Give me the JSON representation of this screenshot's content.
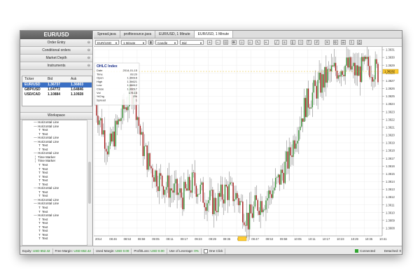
{
  "sidebar": {
    "pair_title": "EUR/USD",
    "sections": [
      "Order Entry",
      "Conditional orders",
      "Market Depth",
      "Instruments"
    ],
    "instruments": {
      "headers": [
        "Ticker",
        "Bid",
        "Ask"
      ],
      "rows": [
        {
          "ticker": "EUR/USD",
          "bid": "1.36737",
          "ask": "1.36803",
          "selected": true
        },
        {
          "ticker": "GBP/USD",
          "bid": "1.64772",
          "ask": "1.64846",
          "selected": false
        },
        {
          "ticker": "USD/CAD",
          "bid": "1.10884",
          "ask": "1.10928",
          "selected": false
        }
      ]
    },
    "workspace_title": "Workspace",
    "workspace_items": [
      {
        "icon": "horizontal-line-icon",
        "label": "Horizontal Line"
      },
      {
        "icon": "horizontal-line-icon",
        "label": "Horizontal Line"
      },
      {
        "icon": "text-icon",
        "label": "Text"
      },
      {
        "icon": "text-icon",
        "label": "Text"
      },
      {
        "icon": "horizontal-line-icon",
        "label": "Horizontal Line"
      },
      {
        "icon": "horizontal-line-icon",
        "label": "Horizontal Line"
      },
      {
        "icon": "text-icon",
        "label": "Text"
      },
      {
        "icon": "text-icon",
        "label": "Text"
      },
      {
        "icon": "horizontal-line-icon",
        "label": "Horizontal Line"
      },
      {
        "icon": "time-marker-icon",
        "label": "Time Marker"
      },
      {
        "icon": "time-marker-icon",
        "label": "Time Marker"
      },
      {
        "icon": "text-icon",
        "label": "Text"
      },
      {
        "icon": "text-icon",
        "label": "Text"
      },
      {
        "icon": "text-icon",
        "label": "Text"
      },
      {
        "icon": "text-icon",
        "label": "Text"
      },
      {
        "icon": "text-icon",
        "label": "Text"
      },
      {
        "icon": "text-icon",
        "label": "Text"
      },
      {
        "icon": "horizontal-line-icon",
        "label": "Horizontal Line"
      },
      {
        "icon": "text-icon",
        "label": "Text"
      },
      {
        "icon": "text-icon",
        "label": "Text"
      },
      {
        "icon": "horizontal-line-icon",
        "label": "Horizontal Line"
      },
      {
        "icon": "horizontal-line-icon",
        "label": "Horizontal Line"
      },
      {
        "icon": "text-icon",
        "label": "Text"
      },
      {
        "icon": "text-icon",
        "label": "Text"
      },
      {
        "icon": "horizontal-line-icon",
        "label": "Horizontal Line"
      },
      {
        "icon": "text-icon",
        "label": "Text"
      },
      {
        "icon": "text-icon",
        "label": "Text"
      },
      {
        "icon": "text-icon",
        "label": "Text"
      },
      {
        "icon": "text-icon",
        "label": "Text"
      },
      {
        "icon": "text-icon",
        "label": "Text"
      },
      {
        "icon": "text-icon",
        "label": "Text"
      }
    ]
  },
  "tabs": [
    {
      "label": "Spread.java",
      "active": false
    },
    {
      "label": "profitexource.java",
      "active": false
    },
    {
      "label": "EUR/USD, 1 Minute",
      "active": false
    },
    {
      "label": "EUR/USD, 1 Minute",
      "active": true
    }
  ],
  "toolbar": {
    "instrument": "EUR/USD",
    "period": "1 Minute",
    "chart_type": "Candle",
    "side": "Bid"
  },
  "ohlc": {
    "title": "OHLC Index",
    "rows": [
      {
        "k": "Date",
        "v": "2014-01-15"
      },
      {
        "k": "Time",
        "v": "09:20"
      },
      {
        "k": "Open",
        "v": "1.36616"
      },
      {
        "k": "High",
        "v": "1.36621"
      },
      {
        "k": "Low",
        "v": "1.36612"
      },
      {
        "k": "Close",
        "v": "1.36617"
      },
      {
        "k": "Vol",
        "v": "178.15"
      },
      {
        "k": "%Chg",
        "v": "0%"
      },
      {
        "k": "Spread",
        "v": "1"
      }
    ]
  },
  "chart_data": {
    "type": "candlestick",
    "price_ticks": [
      "1.3631",
      "1.3630",
      "1.3629",
      "1.3628",
      "1.3627",
      "1.3626",
      "1.3625",
      "1.3624",
      "1.3623",
      "1.3622",
      "1.3621",
      "1.3620",
      "1.3619",
      "1.3618",
      "1.3617",
      "1.3616",
      "1.3615",
      "1.3614",
      "1.3613",
      "1.3612",
      "1.3611",
      "1.3610",
      "1.3609",
      "1.3608"
    ],
    "time_ticks": [
      "2014",
      "08:46",
      "08:53",
      "08:59",
      "09:05",
      "09:11",
      "09:17",
      "09:23",
      "09:29",
      "09:35",
      "09:41",
      "09:47",
      "09:53",
      "09:59",
      "10:05",
      "10:11",
      "10:17",
      "10:23",
      "10:29",
      "10:35",
      "10:41"
    ],
    "current_price": "1.36282",
    "up_color": "#2e8b2e",
    "down_color": "#a01212",
    "segments": [
      [
        0,
        1.3624
      ],
      [
        10,
        1.3618
      ],
      [
        20,
        1.3623
      ],
      [
        28,
        1.3626
      ],
      [
        34,
        1.3619
      ],
      [
        40,
        1.3616
      ],
      [
        48,
        1.3614
      ],
      [
        56,
        1.3613
      ],
      [
        64,
        1.3612
      ],
      [
        72,
        1.3614
      ],
      [
        80,
        1.3612
      ],
      [
        88,
        1.3611
      ],
      [
        96,
        1.3613
      ],
      [
        104,
        1.3612
      ],
      [
        112,
        1.3609
      ],
      [
        118,
        1.3611
      ],
      [
        126,
        1.3612
      ],
      [
        134,
        1.3614
      ],
      [
        142,
        1.3617
      ],
      [
        148,
        1.3621
      ],
      [
        154,
        1.3624
      ],
      [
        162,
        1.3626
      ],
      [
        172,
        1.3628
      ],
      [
        182,
        1.3629
      ],
      [
        192,
        1.3628
      ],
      [
        200,
        1.3629
      ],
      [
        208,
        1.3628
      ]
    ],
    "candle_count": 208
  },
  "status": {
    "equity_label": "Equity:",
    "equity": "USD 652.42",
    "free_margin_label": "Free Margin:",
    "free_margin": "USD 652.42",
    "used_margin_label": "Used Margin:",
    "used_margin": "USD 0.00",
    "pl_label": "Profit/Loss:",
    "pl": "USD 0.00",
    "leverage_label": "Use of Leverage:",
    "leverage": "0%",
    "one_click": "One Click",
    "connected": "Connected",
    "detached": "Detached: 0"
  }
}
